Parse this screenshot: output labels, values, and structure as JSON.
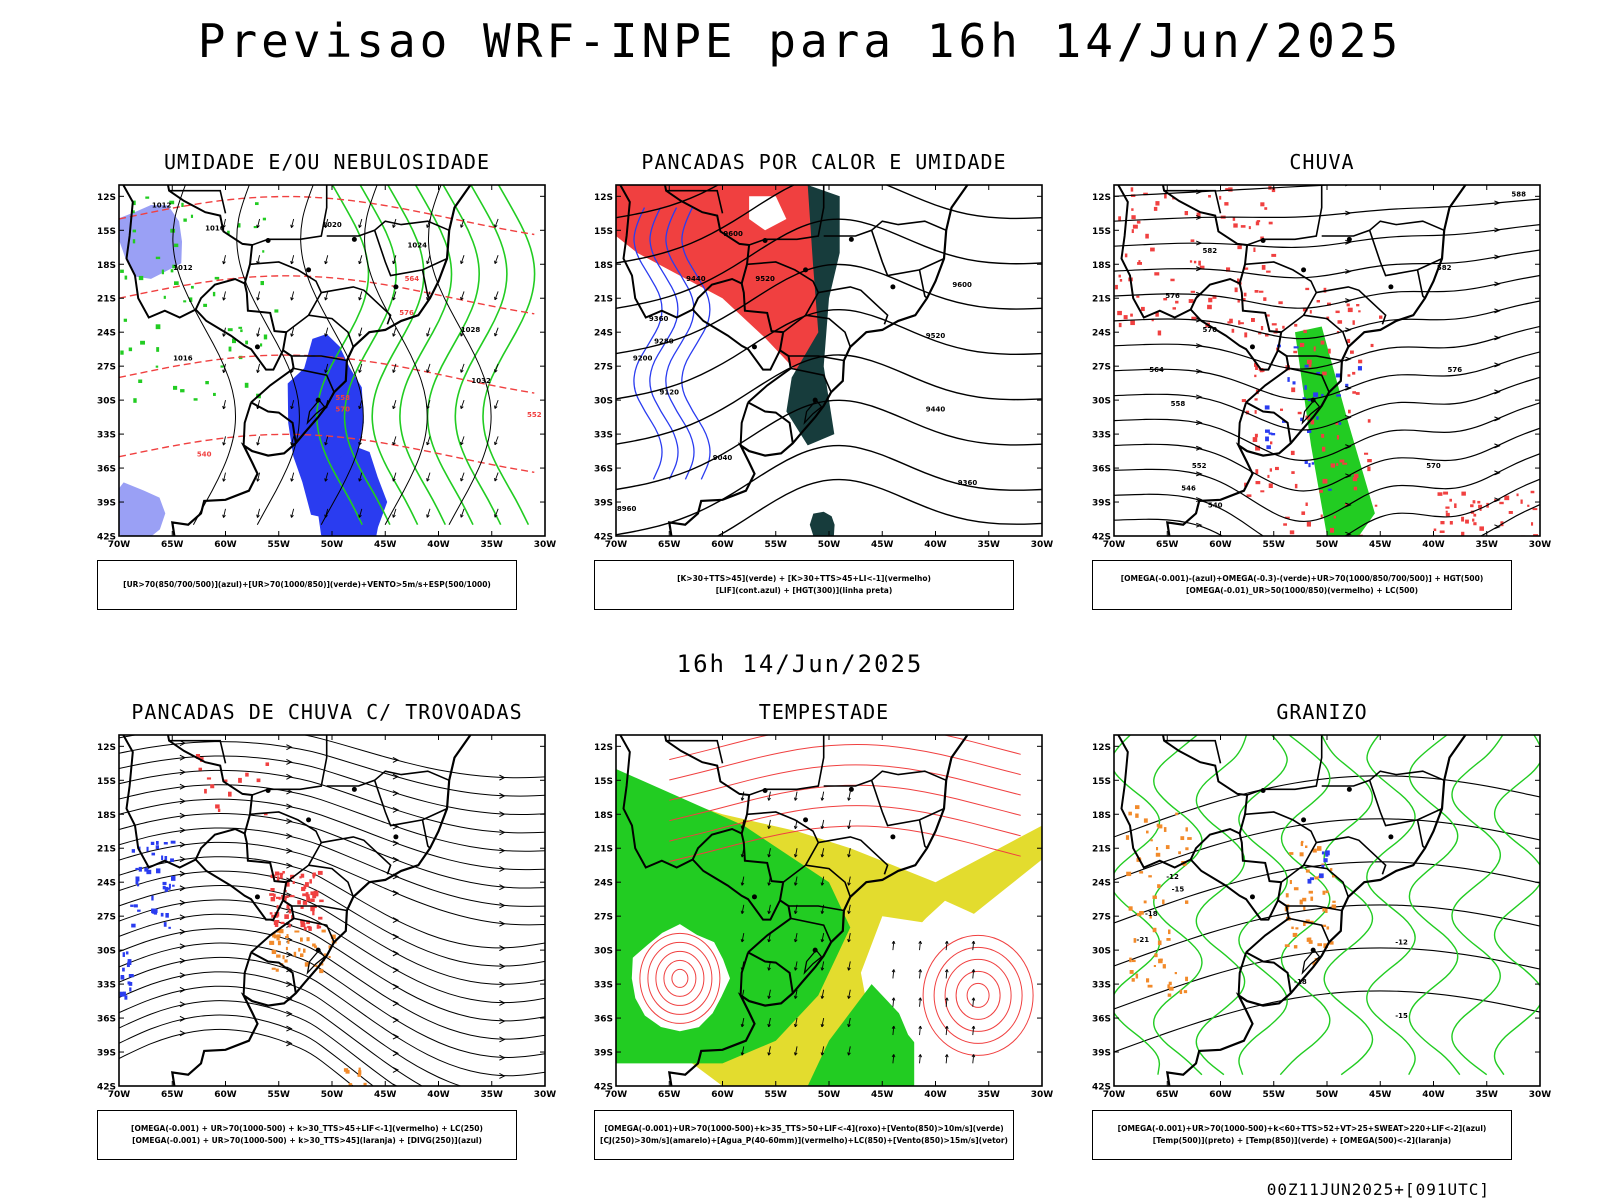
{
  "header": {
    "title": "Previsao WRF-INPE  para 16h 14/Jun/2025",
    "subtitle": "16h 14/Jun/2025",
    "footer": "00Z11JUN2025+[091UTC]"
  },
  "axes": {
    "lat_labels": [
      "12S",
      "15S",
      "18S",
      "21S",
      "24S",
      "27S",
      "30S",
      "33S",
      "36S",
      "39S",
      "42S"
    ],
    "lon_labels": [
      "70W",
      "65W",
      "60W",
      "55W",
      "50W",
      "45W",
      "40W",
      "35W",
      "30W"
    ]
  },
  "colors": {
    "blue": "#2a3cf0",
    "lightblue": "#9aa0f5",
    "green": "#22cc22",
    "red": "#f04040",
    "darkteal": "#173c3c",
    "yellow": "#e3dc2e",
    "orange": "#f28a2a"
  },
  "panels": [
    {
      "id": "umidade",
      "title": "UMIDADE E/OU NEBULOSIDADE",
      "caption": [
        "[UR>70(850/700/500)](azul)+[UR>70(1000/850)](verde)+VENTO>5m/s+ESP(500/1000)"
      ],
      "contour_labels": [
        "1012",
        "1012",
        "1016",
        "1020",
        "1024",
        "1028",
        "1032",
        "552",
        "570",
        "564",
        "576",
        "558",
        "540",
        "1016"
      ]
    },
    {
      "id": "pancadas_calor",
      "title": "PANCADAS POR CALOR E UMIDADE",
      "caption": [
        "[K>30+TTS>45](verde) + [K>30+TTS>45+LI<-1](vermelho)",
        "[LIF](cont.azul) + [HGT(300)](linha preta)"
      ],
      "contour_labels": [
        "9600",
        "9520",
        "9440",
        "9360",
        "9280",
        "9200",
        "9120",
        "9040",
        "8960",
        "9600",
        "9520",
        "9440",
        "9360"
      ]
    },
    {
      "id": "chuva",
      "title": "CHUVA",
      "caption": [
        "[OMEGA(-0.001)-(azul)+OMEGA(-0.3)-(verde)+UR>70(1000/850/700/500)] + HGT(500)",
        "[OMEGA(-0.01)_UR>50(1000/850)(vermelho) + LC(500)"
      ],
      "contour_labels": [
        "582",
        "576",
        "570",
        "564",
        "558",
        "552",
        "546",
        "540",
        "588",
        "582",
        "576",
        "570"
      ]
    },
    {
      "id": "trovoadas",
      "title": "PANCADAS DE CHUVA C/ TROVOADAS",
      "caption": [
        "[OMEGA(-0.001) + UR>70(1000-500) + k>30_TTS>45+LIF<-1](vermelho) + LC(250)",
        "[OMEGA(-0.001) + UR>70(1000-500) + k>30_TTS>45](laranja) + [DIVG(250)](azul)"
      ],
      "contour_labels": []
    },
    {
      "id": "tempestade",
      "title": "TEMPESTADE",
      "caption": [
        "[OMEGA(-0.001)+UR>70(1000-500)+k>35_TTS>50+LIF<-4](roxo)+[Vento(850)>10m/s](verde)",
        "[CJ(250)>30m/s](amarelo)+[Agua_P(40-60mm)](vermelho)+LC(850)+[Vento(850)>15m/s](vetor)"
      ],
      "contour_labels": []
    },
    {
      "id": "granizo",
      "title": "GRANIZO",
      "caption": [
        "[OMEGA(-0.001)+UR>70(1000-500)+k<60+TTS>52+VT>25+SWEAT>220+LIF<-2](azul)",
        "[Temp(500)](preto) + [Temp(850)](verde) + [OMEGA(500)<-2](laranja)"
      ],
      "contour_labels": [
        "-12",
        "-15",
        "-18",
        "-21",
        "-12",
        "-15",
        "-18"
      ]
    }
  ]
}
